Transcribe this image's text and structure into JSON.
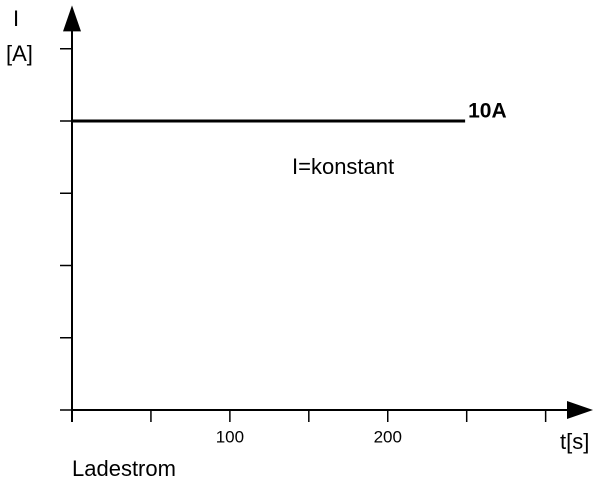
{
  "chart_data": {
    "type": "line",
    "title": "Ladestrom",
    "xlabel": "t[s]",
    "ylabel": [
      "I",
      "[A]"
    ],
    "annotations": [
      "I=konstant"
    ],
    "end_label": "10A",
    "x": [
      0,
      249
    ],
    "series": [
      {
        "color": "#000000",
        "values": [
          10,
          10
        ]
      }
    ],
    "xlim": [
      0,
      330
    ],
    "ylim": [
      0,
      14
    ],
    "xticks": [
      100,
      200
    ],
    "xminor_ticks": [
      0,
      50,
      150,
      250,
      300
    ],
    "yticks": [
      0,
      2.5,
      5,
      7.5,
      10,
      12.5
    ],
    "ytick_labels": false,
    "grid": false
  }
}
